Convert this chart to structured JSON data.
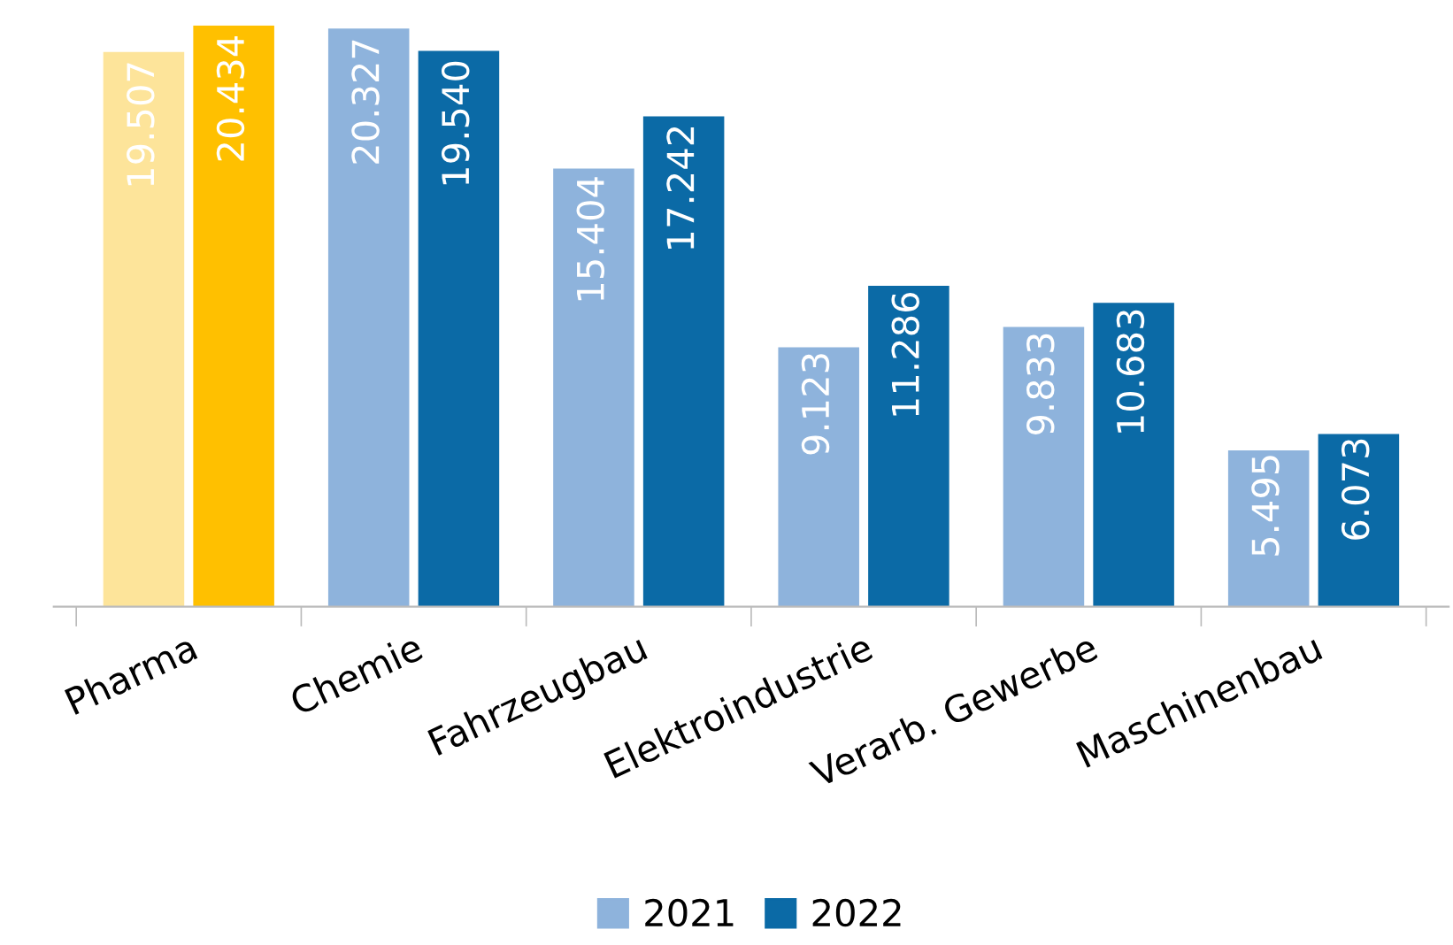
{
  "chart_data": {
    "type": "bar",
    "categories": [
      "Pharma",
      "Chemie",
      "Fahrzeugbau",
      "Elektroindustrie",
      "Verarb. Gewerbe",
      "Maschinenbau"
    ],
    "series": [
      {
        "name": "2021",
        "color": "#8eb3dc",
        "colors": [
          "#fde49a",
          "#8eb3dc",
          "#8eb3dc",
          "#8eb3dc",
          "#8eb3dc",
          "#8eb3dc"
        ],
        "values": [
          19507,
          20327,
          15404,
          9123,
          9833,
          5495
        ],
        "value_labels": [
          "19.507",
          "20.327",
          "15.404",
          "9.123",
          "9.833",
          "5.495"
        ]
      },
      {
        "name": "2022",
        "color": "#0b6aa6",
        "colors": [
          "#ffc000",
          "#0b6aa6",
          "#0b6aa6",
          "#0b6aa6",
          "#0b6aa6",
          "#0b6aa6"
        ],
        "values": [
          20434,
          19540,
          17242,
          11286,
          10683,
          6073
        ],
        "value_labels": [
          "20.434",
          "19.540",
          "17.242",
          "11.286",
          "10.683",
          "6.073"
        ]
      }
    ],
    "legend": "bottom",
    "grid": false
  }
}
